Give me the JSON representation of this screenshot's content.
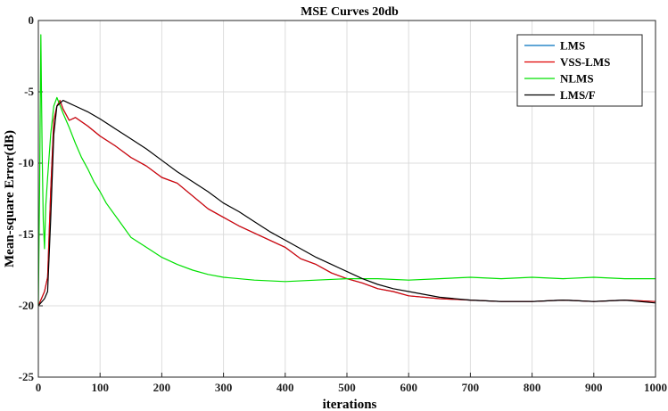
{
  "chart_data": {
    "type": "line",
    "title": "MSE Curves 20db",
    "xlabel": "iterations",
    "ylabel": "Mean-square Error(dB)",
    "xlim": [
      0,
      1000
    ],
    "ylim": [
      -25,
      0
    ],
    "xticks": [
      "0",
      "100",
      "200",
      "300",
      "400",
      "500",
      "600",
      "700",
      "800",
      "900",
      "1000"
    ],
    "yticks": [
      "0",
      "-5",
      "-10",
      "-15",
      "-20",
      "-25"
    ],
    "grid": true,
    "legend_position": "top-right",
    "series": [
      {
        "name": "LMS",
        "color": "#0072BD",
        "points": [
          [
            0,
            -20
          ],
          [
            10,
            -19
          ],
          [
            15,
            -18
          ],
          [
            20,
            -12
          ],
          [
            25,
            -7
          ],
          [
            30,
            -6
          ],
          [
            35,
            -5.6
          ],
          [
            40,
            -6.2
          ],
          [
            50,
            -7
          ],
          [
            60,
            -6.8
          ],
          [
            80,
            -7.4
          ],
          [
            100,
            -8.1
          ],
          [
            125,
            -8.8
          ],
          [
            150,
            -9.6
          ],
          [
            175,
            -10.2
          ],
          [
            200,
            -11.0
          ],
          [
            225,
            -11.4
          ],
          [
            250,
            -12.3
          ],
          [
            275,
            -13.2
          ],
          [
            300,
            -13.8
          ],
          [
            325,
            -14.4
          ],
          [
            350,
            -14.9
          ],
          [
            375,
            -15.4
          ],
          [
            400,
            -15.9
          ],
          [
            425,
            -16.7
          ],
          [
            450,
            -17.1
          ],
          [
            475,
            -17.7
          ],
          [
            500,
            -18.1
          ],
          [
            525,
            -18.4
          ],
          [
            550,
            -18.8
          ],
          [
            575,
            -19.0
          ],
          [
            600,
            -19.3
          ],
          [
            650,
            -19.5
          ],
          [
            700,
            -19.6
          ],
          [
            750,
            -19.7
          ],
          [
            800,
            -19.7
          ],
          [
            850,
            -19.6
          ],
          [
            900,
            -19.7
          ],
          [
            950,
            -19.6
          ],
          [
            1000,
            -19.7
          ]
        ]
      },
      {
        "name": "VSS-LMS",
        "color": "#E00000",
        "points": [
          [
            0,
            -20
          ],
          [
            10,
            -19
          ],
          [
            15,
            -18
          ],
          [
            20,
            -12
          ],
          [
            25,
            -7
          ],
          [
            30,
            -6
          ],
          [
            35,
            -5.6
          ],
          [
            40,
            -6.2
          ],
          [
            50,
            -7
          ],
          [
            60,
            -6.8
          ],
          [
            80,
            -7.4
          ],
          [
            100,
            -8.1
          ],
          [
            125,
            -8.8
          ],
          [
            150,
            -9.6
          ],
          [
            175,
            -10.2
          ],
          [
            200,
            -11.0
          ],
          [
            225,
            -11.4
          ],
          [
            250,
            -12.3
          ],
          [
            275,
            -13.2
          ],
          [
            300,
            -13.8
          ],
          [
            325,
            -14.4
          ],
          [
            350,
            -14.9
          ],
          [
            375,
            -15.4
          ],
          [
            400,
            -15.9
          ],
          [
            425,
            -16.7
          ],
          [
            450,
            -17.1
          ],
          [
            475,
            -17.7
          ],
          [
            500,
            -18.1
          ],
          [
            525,
            -18.4
          ],
          [
            550,
            -18.8
          ],
          [
            575,
            -19.0
          ],
          [
            600,
            -19.3
          ],
          [
            650,
            -19.5
          ],
          [
            700,
            -19.6
          ],
          [
            750,
            -19.7
          ],
          [
            800,
            -19.7
          ],
          [
            850,
            -19.6
          ],
          [
            900,
            -19.7
          ],
          [
            950,
            -19.6
          ],
          [
            1000,
            -19.7
          ]
        ]
      },
      {
        "name": "NLMS",
        "color": "#00E000",
        "points": [
          [
            0,
            -20
          ],
          [
            2,
            -12
          ],
          [
            4,
            -1
          ],
          [
            6,
            -9
          ],
          [
            8,
            -14
          ],
          [
            10,
            -16
          ],
          [
            12,
            -13
          ],
          [
            15,
            -11
          ],
          [
            20,
            -8
          ],
          [
            25,
            -6
          ],
          [
            30,
            -5.4
          ],
          [
            40,
            -6.5
          ],
          [
            50,
            -7.5
          ],
          [
            60,
            -8.6
          ],
          [
            70,
            -9.6
          ],
          [
            80,
            -10.4
          ],
          [
            90,
            -11.3
          ],
          [
            100,
            -12.0
          ],
          [
            110,
            -12.8
          ],
          [
            120,
            -13.4
          ],
          [
            130,
            -14.0
          ],
          [
            140,
            -14.6
          ],
          [
            150,
            -15.2
          ],
          [
            175,
            -15.9
          ],
          [
            200,
            -16.6
          ],
          [
            225,
            -17.1
          ],
          [
            250,
            -17.5
          ],
          [
            275,
            -17.8
          ],
          [
            300,
            -18.0
          ],
          [
            350,
            -18.2
          ],
          [
            400,
            -18.3
          ],
          [
            450,
            -18.2
          ],
          [
            500,
            -18.1
          ],
          [
            550,
            -18.1
          ],
          [
            600,
            -18.2
          ],
          [
            650,
            -18.1
          ],
          [
            700,
            -18.0
          ],
          [
            750,
            -18.1
          ],
          [
            800,
            -18.0
          ],
          [
            850,
            -18.1
          ],
          [
            900,
            -18.0
          ],
          [
            950,
            -18.1
          ],
          [
            1000,
            -18.1
          ]
        ]
      },
      {
        "name": "LMS/F",
        "color": "#000000",
        "points": [
          [
            0,
            -20
          ],
          [
            10,
            -19.5
          ],
          [
            15,
            -19
          ],
          [
            20,
            -14
          ],
          [
            25,
            -8
          ],
          [
            30,
            -6
          ],
          [
            40,
            -5.6
          ],
          [
            50,
            -5.8
          ],
          [
            60,
            -6.0
          ],
          [
            80,
            -6.4
          ],
          [
            100,
            -6.9
          ],
          [
            125,
            -7.6
          ],
          [
            150,
            -8.3
          ],
          [
            175,
            -9.0
          ],
          [
            200,
            -9.8
          ],
          [
            225,
            -10.6
          ],
          [
            250,
            -11.3
          ],
          [
            275,
            -12.0
          ],
          [
            300,
            -12.8
          ],
          [
            325,
            -13.4
          ],
          [
            350,
            -14.1
          ],
          [
            375,
            -14.8
          ],
          [
            400,
            -15.4
          ],
          [
            425,
            -16.0
          ],
          [
            450,
            -16.6
          ],
          [
            475,
            -17.1
          ],
          [
            500,
            -17.6
          ],
          [
            525,
            -18.1
          ],
          [
            550,
            -18.5
          ],
          [
            575,
            -18.8
          ],
          [
            600,
            -19.0
          ],
          [
            650,
            -19.4
          ],
          [
            700,
            -19.6
          ],
          [
            750,
            -19.7
          ],
          [
            800,
            -19.7
          ],
          [
            850,
            -19.6
          ],
          [
            900,
            -19.7
          ],
          [
            950,
            -19.6
          ],
          [
            1000,
            -19.8
          ]
        ]
      }
    ]
  }
}
